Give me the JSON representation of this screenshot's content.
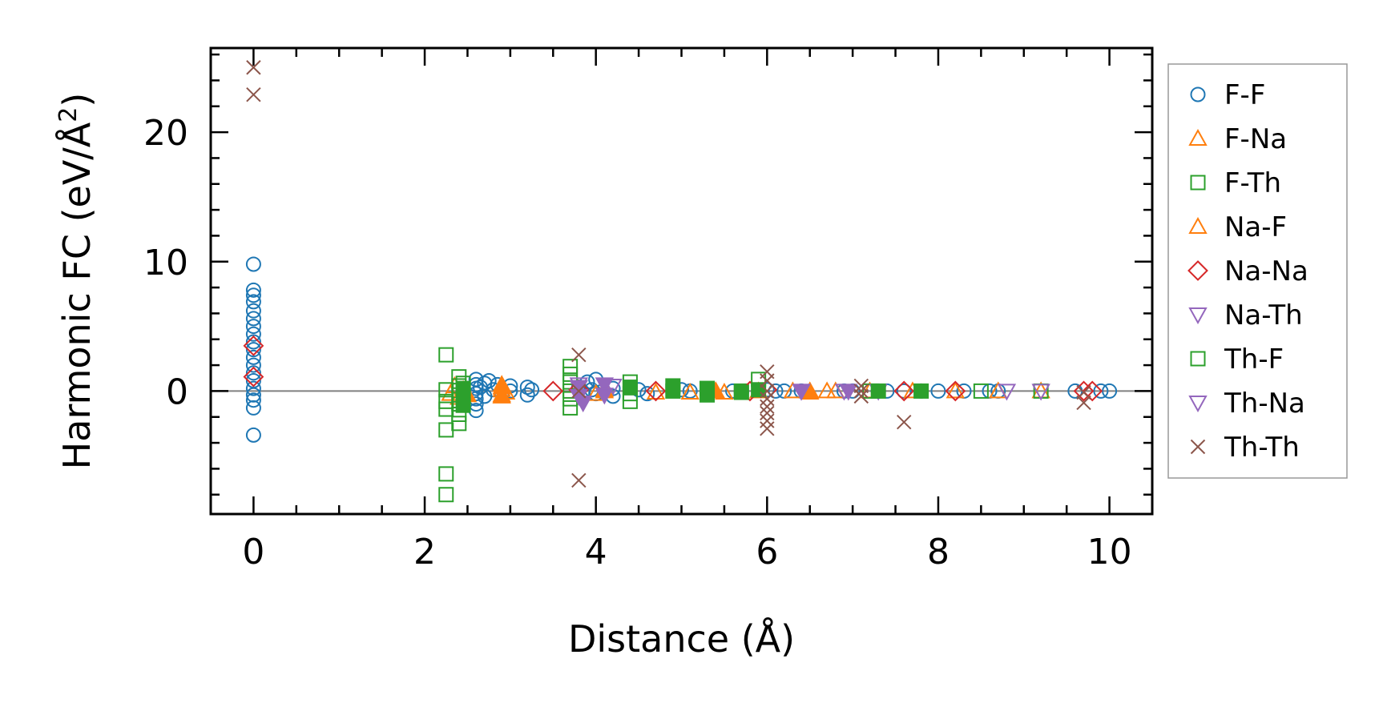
{
  "chart_data": {
    "type": "scatter",
    "xlabel": "Distance (Å)",
    "ylabel": "Harmonic FC (eV/Å²)",
    "ylabel_parts": {
      "main": "Harmonic FC (eV/Å",
      "sup": "2",
      "close": ")"
    },
    "xlim": [
      -0.5,
      10.5
    ],
    "ylim": [
      -9.5,
      26.5
    ],
    "xticks": [
      0,
      2,
      4,
      6,
      8,
      10
    ],
    "xtick_labels": [
      "0",
      "2",
      "4",
      "6",
      "8",
      "10"
    ],
    "yticks": [
      0,
      10,
      20
    ],
    "ytick_labels": [
      "0",
      "10",
      "20"
    ],
    "zero_line": true,
    "grid": false,
    "legend_position": "outside-right",
    "series": [
      {
        "name": "F-F",
        "marker": "circle",
        "color": "#1f77b4",
        "points": [
          [
            0,
            9.8
          ],
          [
            0,
            7.8
          ],
          [
            0,
            7.4
          ],
          [
            0,
            6.9
          ],
          [
            0,
            6.2
          ],
          [
            0,
            5.6
          ],
          [
            0,
            5.0
          ],
          [
            0,
            4.4
          ],
          [
            0,
            3.8
          ],
          [
            0,
            3.2
          ],
          [
            0,
            2.6
          ],
          [
            0,
            2.0
          ],
          [
            0,
            1.4
          ],
          [
            0,
            0.8
          ],
          [
            0,
            0.2
          ],
          [
            0,
            -0.3
          ],
          [
            0,
            -0.7
          ],
          [
            0,
            -1.3
          ],
          [
            0,
            -3.4
          ],
          [
            2.6,
            0.9
          ],
          [
            2.6,
            0.5
          ],
          [
            2.6,
            0.2
          ],
          [
            2.6,
            -0.2
          ],
          [
            2.6,
            -0.6
          ],
          [
            2.6,
            -1.0
          ],
          [
            2.6,
            -1.5
          ],
          [
            2.65,
            0.3
          ],
          [
            2.7,
            0.6
          ],
          [
            2.7,
            -0.4
          ],
          [
            2.75,
            0.8
          ],
          [
            2.8,
            0.1
          ],
          [
            2.85,
            0.5
          ],
          [
            2.9,
            -0.2
          ],
          [
            3.0,
            0.4
          ],
          [
            3.0,
            0.0
          ],
          [
            3.2,
            0.3
          ],
          [
            3.2,
            -0.3
          ],
          [
            3.25,
            0.1
          ],
          [
            3.8,
            0.3
          ],
          [
            3.85,
            -0.1
          ],
          [
            3.9,
            0.7
          ],
          [
            3.95,
            0.1
          ],
          [
            4.0,
            0.9
          ],
          [
            4.0,
            -0.2
          ],
          [
            4.2,
            0.2
          ],
          [
            4.2,
            -0.4
          ],
          [
            4.5,
            0.1
          ],
          [
            4.6,
            -0.2
          ],
          [
            5.0,
            0.1
          ],
          [
            5.1,
            0.0
          ],
          [
            5.3,
            0.1
          ],
          [
            5.6,
            0.0
          ],
          [
            5.7,
            -0.1
          ],
          [
            6.0,
            0.1
          ],
          [
            6.1,
            0.0
          ],
          [
            6.2,
            0.0
          ],
          [
            6.4,
            0.0
          ],
          [
            6.9,
            0.0
          ],
          [
            7.0,
            0.0
          ],
          [
            7.3,
            0.0
          ],
          [
            7.4,
            0.0
          ],
          [
            7.6,
            0.0
          ],
          [
            7.8,
            0.0
          ],
          [
            8.0,
            0.0
          ],
          [
            8.3,
            0.0
          ],
          [
            8.6,
            0.0
          ],
          [
            8.7,
            0.0
          ],
          [
            9.6,
            0.0
          ],
          [
            9.9,
            0.0
          ],
          [
            10.0,
            0.0
          ]
        ]
      },
      {
        "name": "F-Na",
        "marker": "triangle-up",
        "color": "#ff7f0e",
        "points": [
          [
            2.3,
            -0.2
          ],
          [
            2.35,
            0.4
          ],
          [
            2.4,
            -0.5
          ],
          [
            2.9,
            0.5
          ],
          [
            2.9,
            0.1
          ],
          [
            2.9,
            -0.4
          ],
          [
            2.95,
            -0.1
          ],
          [
            4.0,
            -0.2
          ],
          [
            4.1,
            0.1
          ],
          [
            4.7,
            -0.1
          ],
          [
            5.1,
            -0.1
          ],
          [
            5.4,
            0.0
          ],
          [
            5.5,
            -0.1
          ],
          [
            5.9,
            0.0
          ],
          [
            6.3,
            0.0
          ],
          [
            6.5,
            -0.1
          ],
          [
            6.7,
            0.0
          ],
          [
            6.8,
            0.0
          ],
          [
            7.2,
            0.0
          ],
          [
            7.7,
            0.0
          ],
          [
            8.2,
            0.0
          ],
          [
            8.7,
            0.0
          ],
          [
            9.2,
            0.0
          ]
        ]
      },
      {
        "name": "F-Th",
        "marker": "square",
        "color": "#2ca02c",
        "points": [
          [
            2.25,
            2.8
          ],
          [
            2.25,
            0.1
          ],
          [
            2.25,
            -0.8
          ],
          [
            2.25,
            -1.4
          ],
          [
            2.25,
            -3.0
          ],
          [
            2.25,
            -6.4
          ],
          [
            2.25,
            -8.0
          ],
          [
            2.4,
            1.1
          ],
          [
            2.4,
            0.4
          ],
          [
            2.4,
            -0.3
          ],
          [
            2.4,
            -1.0
          ],
          [
            2.4,
            -1.8
          ],
          [
            2.4,
            -2.5
          ],
          [
            2.45,
            0.6
          ],
          [
            3.7,
            1.9
          ],
          [
            3.7,
            1.3
          ],
          [
            3.7,
            0.7
          ],
          [
            3.7,
            0.0
          ],
          [
            3.7,
            -0.6
          ],
          [
            3.7,
            -1.3
          ],
          [
            4.4,
            0.7
          ],
          [
            4.4,
            -0.2
          ],
          [
            4.4,
            -0.8
          ],
          [
            5.3,
            0.2
          ],
          [
            5.7,
            0.0
          ],
          [
            5.9,
            0.9
          ],
          [
            7.2,
            0.0
          ],
          [
            8.5,
            0.0
          ],
          [
            9.2,
            0.0
          ]
        ]
      },
      {
        "name": "Na-F",
        "marker": "triangle-up-filled",
        "color": "#ff7f0e",
        "points": [
          [
            2.45,
            0.1
          ],
          [
            2.5,
            -0.3
          ],
          [
            2.9,
            0.3
          ],
          [
            2.9,
            -0.3
          ],
          [
            4.1,
            0.0
          ],
          [
            5.4,
            0.0
          ],
          [
            6.5,
            0.0
          ]
        ]
      },
      {
        "name": "Na-Na",
        "marker": "diamond",
        "color": "#d62728",
        "points": [
          [
            0,
            3.5
          ],
          [
            0,
            1.1
          ],
          [
            3.5,
            0.0
          ],
          [
            3.8,
            0.1
          ],
          [
            4.7,
            0.0
          ],
          [
            5.8,
            0.0
          ],
          [
            6.0,
            0.1
          ],
          [
            7.6,
            0.0
          ],
          [
            8.2,
            0.0
          ],
          [
            9.7,
            0.0
          ],
          [
            9.8,
            0.0
          ]
        ]
      },
      {
        "name": "Na-Th",
        "marker": "triangle-down",
        "color": "#9467bd",
        "points": [
          [
            3.8,
            0.5
          ],
          [
            4.2,
            0.4
          ],
          [
            6.4,
            0.0
          ],
          [
            6.9,
            0.0
          ],
          [
            7.3,
            0.0
          ],
          [
            8.8,
            0.0
          ],
          [
            9.2,
            0.0
          ]
        ]
      },
      {
        "name": "Th-F",
        "marker": "square-filled",
        "color": "#2ca02c",
        "points": [
          [
            2.45,
            0.2
          ],
          [
            2.45,
            -0.5
          ],
          [
            2.45,
            -1.1
          ],
          [
            4.4,
            0.3
          ],
          [
            4.9,
            0.4
          ],
          [
            4.9,
            0.0
          ],
          [
            5.3,
            0.2
          ],
          [
            5.3,
            -0.3
          ],
          [
            5.7,
            -0.1
          ],
          [
            5.9,
            0.1
          ],
          [
            7.3,
            0.0
          ],
          [
            7.8,
            0.0
          ]
        ]
      },
      {
        "name": "Th-Na",
        "marker": "triangle-down-filled",
        "color": "#9467bd",
        "points": [
          [
            3.8,
            0.3
          ],
          [
            3.8,
            -0.4
          ],
          [
            3.85,
            -0.9
          ],
          [
            4.1,
            0.5
          ],
          [
            4.1,
            -0.3
          ],
          [
            6.4,
            0.0
          ],
          [
            6.95,
            0.0
          ]
        ]
      },
      {
        "name": "Th-Th",
        "marker": "x",
        "color": "#8c564b",
        "points": [
          [
            0,
            25.0
          ],
          [
            0,
            22.9
          ],
          [
            3.8,
            2.8
          ],
          [
            3.8,
            0.0
          ],
          [
            3.8,
            -6.9
          ],
          [
            6.0,
            1.5
          ],
          [
            6.0,
            0.8
          ],
          [
            6.0,
            0.0
          ],
          [
            6.0,
            -0.6
          ],
          [
            6.0,
            -1.2
          ],
          [
            6.0,
            -1.7
          ],
          [
            6.0,
            -2.3
          ],
          [
            6.0,
            -2.9
          ],
          [
            7.1,
            0.4
          ],
          [
            7.1,
            0.0
          ],
          [
            7.1,
            -0.4
          ],
          [
            7.6,
            -2.4
          ],
          [
            9.7,
            -0.1
          ],
          [
            9.7,
            -0.9
          ]
        ]
      }
    ]
  }
}
